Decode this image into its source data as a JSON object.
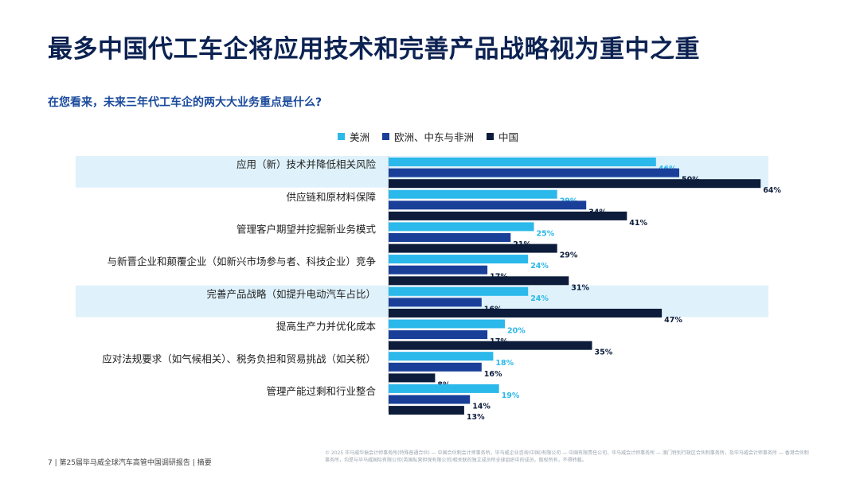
{
  "title": "最多中国代工车企将应用技术和完善产品战略视为重中之重",
  "question": "在您看来，未来三年代工车企的两大大业务重点是什么?",
  "footer": {
    "page_label": "7 | 第25届毕马威全球汽车高管中国调研报告 | 摘要",
    "disclaimer": "© 2025 毕马威华振会计师事务所(特殊普通合伙) — 中国合伙制会计师事务所，毕马威企业咨询(中国)有限公司 — 中国有限责任公司，毕马威会计师事务所 — 澳门特别行政区合伙制事务所，及毕马威会计师事务所 — 香港合伙制事务所，均是与毕马威国际有限公司(英国私营担保有限公司)相关联的独立成员所全球组织中的成员。版权所有，不得转载。"
  },
  "colors": {
    "americas": "#2bb8ea",
    "emea": "#1a3f99",
    "china": "#0c1c3a",
    "highlight_row": "#dff2fb",
    "title": "#0c2252",
    "label_americas": "#2bb8ea",
    "label_dark": "#0c1c3a"
  },
  "chart_data": {
    "type": "bar",
    "orientation": "horizontal",
    "categories": [
      "应用（新）技术并降低相关风险",
      "供应链和原材料保障",
      "管理客户期望并挖掘新业务模式",
      "与新晋企业和颠覆企业（如新兴市场参与者、科技企业）竞争",
      "完善产品战略（如提升电动汽车占比）",
      "提高生产力并优化成本",
      "应对法规要求（如气候相关）、税务负担和贸易挑战（如关税）",
      "管理产能过剩和行业整合"
    ],
    "highlighted_categories": [
      0,
      4
    ],
    "series": [
      {
        "name": "美洲",
        "values": [
          46,
          29,
          25,
          24,
          24,
          20,
          18,
          19
        ]
      },
      {
        "name": "欧洲、中东与非洲",
        "values": [
          50,
          34,
          21,
          17,
          16,
          17,
          16,
          14
        ]
      },
      {
        "name": "中国",
        "values": [
          64,
          41,
          29,
          31,
          47,
          35,
          8,
          13
        ]
      }
    ],
    "value_suffix": "%",
    "legend_position": "top",
    "grid": false
  }
}
